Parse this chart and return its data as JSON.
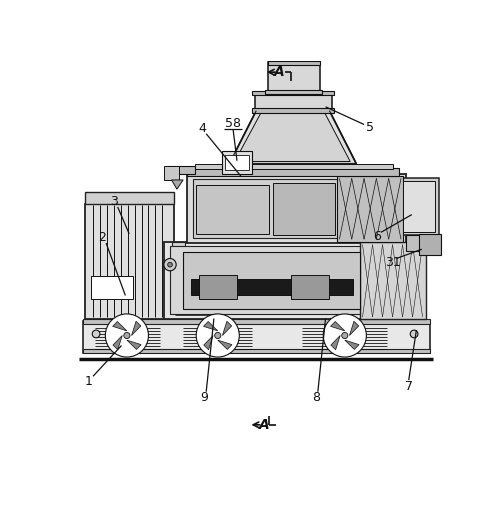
{
  "bg_color": "#ffffff",
  "lc": "#222222",
  "dc": "#111111",
  "figsize": [
    5.0,
    5.05
  ],
  "dpi": 100,
  "xlim": [
    0,
    500
  ],
  "ylim": [
    0,
    505
  ]
}
